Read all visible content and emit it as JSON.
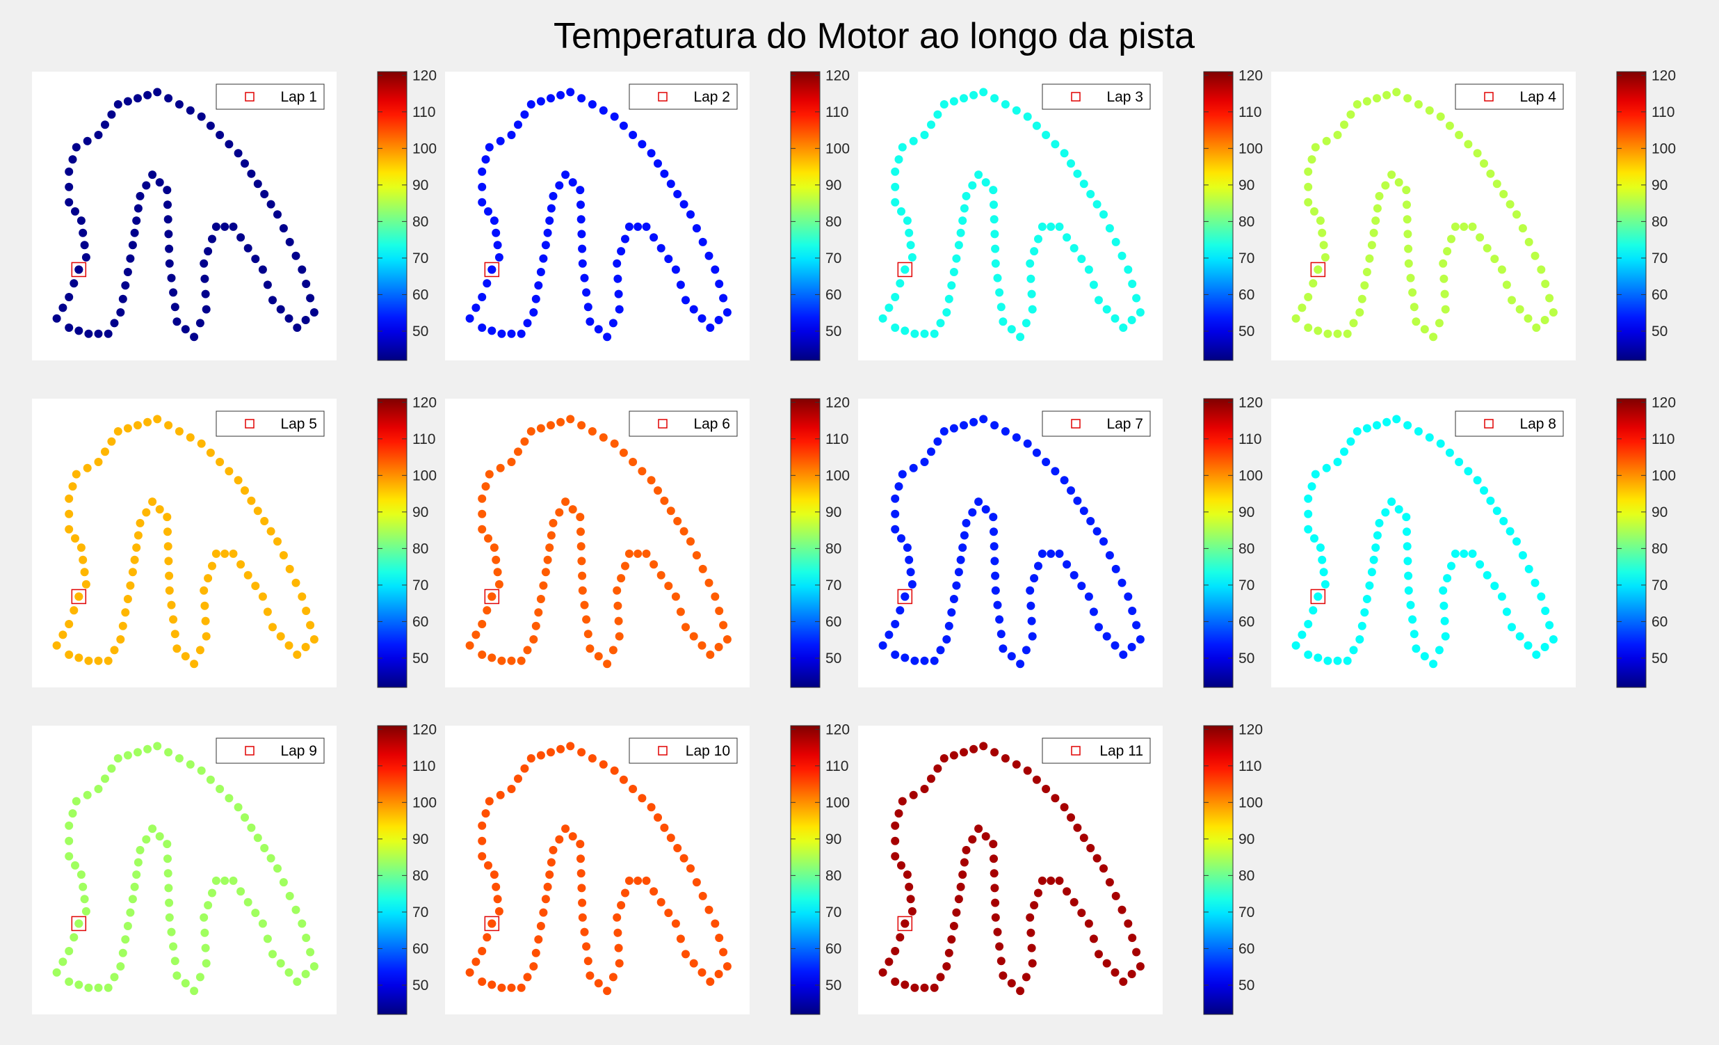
{
  "figure": {
    "title": "Temperatura do Motor ao longo da pista"
  },
  "colorbar": {
    "colormap": "jet",
    "range": [
      42,
      121
    ],
    "ticks": [
      50,
      60,
      70,
      80,
      90,
      100,
      110,
      120
    ]
  },
  "chart_data": {
    "type": "scatter",
    "title": "Temperatura do Motor ao longo da pista",
    "description_of_values": "Each lap is a scatter of track points colored by motor temperature (jet colormap). The red square marks the lap start point.",
    "series": [
      {
        "name": "Lap 1",
        "temperature_approx": 43
      },
      {
        "name": "Lap 2",
        "temperature_approx": 53
      },
      {
        "name": "Lap 3",
        "temperature_approx": 73
      },
      {
        "name": "Lap 4",
        "temperature_approx": 86
      },
      {
        "name": "Lap 5",
        "temperature_approx": 97
      },
      {
        "name": "Lap 6",
        "temperature_approx": 104
      },
      {
        "name": "Lap 7",
        "temperature_approx": 54
      },
      {
        "name": "Lap 8",
        "temperature_approx": 72
      },
      {
        "name": "Lap 9",
        "temperature_approx": 84
      },
      {
        "name": "Lap 10",
        "temperature_approx": 105
      },
      {
        "name": "Lap 11",
        "temperature_approx": 118
      }
    ],
    "track_shape": [
      [
        -2.0,
        1.7
      ],
      [
        -1.85,
        2.1
      ],
      [
        -1.4,
        2.3
      ],
      [
        -1.0,
        2.8
      ],
      [
        -0.2,
        3.0
      ],
      [
        0.7,
        2.6
      ],
      [
        1.45,
        2.0
      ],
      [
        2.25,
        1.0
      ],
      [
        2.75,
        0.1
      ],
      [
        3.0,
        -0.6
      ],
      [
        2.65,
        -0.85
      ],
      [
        2.15,
        -0.4
      ],
      [
        1.95,
        0.1
      ],
      [
        1.35,
        0.8
      ],
      [
        1.0,
        0.8
      ],
      [
        0.75,
        0.2
      ],
      [
        0.8,
        -0.55
      ],
      [
        0.55,
        -1.0
      ],
      [
        0.2,
        -0.75
      ],
      [
        0.05,
        0.2
      ],
      [
        0.0,
        1.4
      ],
      [
        -0.3,
        1.65
      ],
      [
        -0.55,
        1.3
      ],
      [
        -0.7,
        0.5
      ],
      [
        -0.95,
        -0.6
      ],
      [
        -1.2,
        -0.95
      ],
      [
        -1.6,
        -0.95
      ],
      [
        -2.0,
        -0.85
      ],
      [
        -2.25,
        -0.7
      ],
      [
        -2.0,
        -0.35
      ],
      [
        -1.8,
        0.1
      ],
      [
        -1.65,
        0.3
      ],
      [
        -1.75,
        0.9
      ],
      [
        -2.0,
        1.2
      ],
      [
        -2.0,
        1.7
      ]
    ],
    "xlim": [
      -2.4,
      3.1
    ],
    "ylim": [
      -1.1,
      3.05
    ],
    "colorbar_ticks": [
      50,
      60,
      70,
      80,
      90,
      100,
      110,
      120
    ],
    "colorbar_range": [
      42,
      121
    ]
  }
}
